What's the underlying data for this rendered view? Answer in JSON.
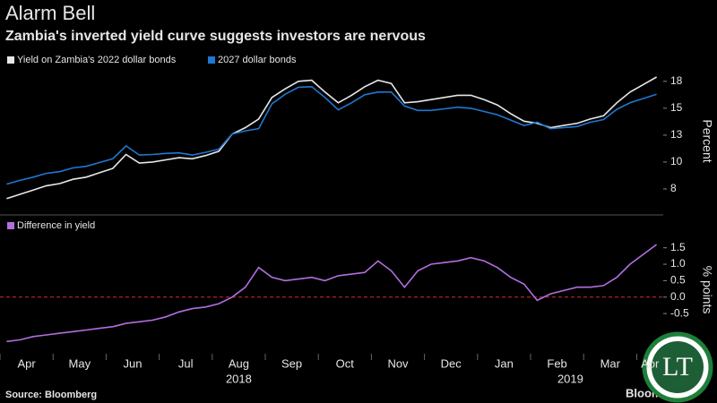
{
  "title": "Alarm Bell",
  "subtitle": "Zambia's inverted yield curve suggests investors are nervous",
  "source": "Source: Bloomberg",
  "brand": "Bloomberg",
  "watermark": "LT",
  "chart_data": [
    {
      "type": "line",
      "ylabel": "Percent",
      "x": [
        "2018-04",
        "2018-04",
        "2018-04",
        "2018-04",
        "2018-05",
        "2018-05",
        "2018-05",
        "2018-05",
        "2018-06",
        "2018-06",
        "2018-06",
        "2018-06",
        "2018-07",
        "2018-07",
        "2018-07",
        "2018-07",
        "2018-08",
        "2018-08",
        "2018-08",
        "2018-08",
        "2018-09",
        "2018-09",
        "2018-09",
        "2018-09",
        "2018-10",
        "2018-10",
        "2018-10",
        "2018-10",
        "2018-11",
        "2018-11",
        "2018-11",
        "2018-11",
        "2018-12",
        "2018-12",
        "2018-12",
        "2018-12",
        "2019-01",
        "2019-01",
        "2019-01",
        "2019-01",
        "2019-02",
        "2019-02",
        "2019-02",
        "2019-02",
        "2019-03",
        "2019-03",
        "2019-03",
        "2019-03",
        "2019-04",
        "2019-04"
      ],
      "series": [
        {
          "name": "Yield on Zambia's 2022 dollar bonds",
          "color": "#e8e8e8",
          "values": [
            6.6,
            7.0,
            7.4,
            7.8,
            8.0,
            8.4,
            8.6,
            9.0,
            9.4,
            10.7,
            9.9,
            10.0,
            10.2,
            10.4,
            10.3,
            10.6,
            11.0,
            12.6,
            13.2,
            14.0,
            16.0,
            16.8,
            17.5,
            17.6,
            16.5,
            15.5,
            16.2,
            17.0,
            17.6,
            17.3,
            15.5,
            15.6,
            15.8,
            16.0,
            16.2,
            16.2,
            15.8,
            15.3,
            14.5,
            13.8,
            13.6,
            13.2,
            13.4,
            13.6,
            14.0,
            14.3,
            15.5,
            16.5,
            17.2,
            17.9
          ]
        },
        {
          "name": "2027 dollar bonds",
          "color": "#1f78d1",
          "values": [
            7.95,
            8.3,
            8.6,
            8.95,
            9.1,
            9.45,
            9.6,
            9.95,
            10.3,
            11.5,
            10.65,
            10.7,
            10.8,
            10.85,
            10.65,
            10.9,
            11.2,
            12.6,
            12.9,
            13.1,
            15.4,
            16.3,
            16.95,
            17.0,
            16.0,
            14.85,
            15.5,
            16.25,
            16.5,
            16.5,
            15.2,
            14.8,
            14.8,
            14.95,
            15.1,
            15.0,
            14.7,
            14.4,
            13.9,
            13.4,
            13.7,
            13.1,
            13.2,
            13.3,
            13.7,
            13.95,
            14.9,
            15.5,
            15.9,
            16.3
          ]
        }
      ],
      "ylim": [
        5.5,
        18.4
      ],
      "yticks": [
        {
          "value": 7.5,
          "label": "8"
        },
        10,
        {
          "value": 12.5,
          "label": "13"
        },
        15,
        {
          "value": 17.5,
          "label": "18"
        }
      ]
    },
    {
      "type": "line",
      "ylabel": "% points",
      "x": [
        "2018-04",
        "2018-04",
        "2018-04",
        "2018-04",
        "2018-05",
        "2018-05",
        "2018-05",
        "2018-05",
        "2018-06",
        "2018-06",
        "2018-06",
        "2018-06",
        "2018-07",
        "2018-07",
        "2018-07",
        "2018-07",
        "2018-08",
        "2018-08",
        "2018-08",
        "2018-08",
        "2018-09",
        "2018-09",
        "2018-09",
        "2018-09",
        "2018-10",
        "2018-10",
        "2018-10",
        "2018-10",
        "2018-11",
        "2018-11",
        "2018-11",
        "2018-11",
        "2018-12",
        "2018-12",
        "2018-12",
        "2018-12",
        "2019-01",
        "2019-01",
        "2019-01",
        "2019-01",
        "2019-02",
        "2019-02",
        "2019-02",
        "2019-02",
        "2019-03",
        "2019-03",
        "2019-03",
        "2019-03",
        "2019-04",
        "2019-04"
      ],
      "series": [
        {
          "name": "Difference in yield",
          "color": "#b36ee0",
          "values": [
            -1.35,
            -1.3,
            -1.2,
            -1.15,
            -1.1,
            -1.05,
            -1.0,
            -0.95,
            -0.9,
            -0.8,
            -0.75,
            -0.7,
            -0.6,
            -0.45,
            -0.35,
            -0.3,
            -0.2,
            0.0,
            0.3,
            0.9,
            0.6,
            0.5,
            0.55,
            0.6,
            0.5,
            0.65,
            0.7,
            0.75,
            1.1,
            0.8,
            0.3,
            0.8,
            1.0,
            1.05,
            1.1,
            1.2,
            1.1,
            0.9,
            0.6,
            0.4,
            -0.1,
            0.1,
            0.2,
            0.3,
            0.3,
            0.35,
            0.6,
            1.0,
            1.3,
            1.6
          ]
        }
      ],
      "ylim": [
        -1.45,
        1.9
      ],
      "yticks": [
        {
          "value": -0.5,
          "label": "-0.5"
        },
        {
          "value": 0,
          "label": "0.0"
        },
        0.5,
        {
          "value": 1,
          "label": "1.0"
        },
        1.5
      ],
      "reference_line": {
        "value": 0,
        "color": "#d0312d"
      },
      "xticks": [
        {
          "value": "2018-04",
          "label": "Apr"
        },
        {
          "value": "2018-05",
          "label": "May"
        },
        {
          "value": "2018-06",
          "label": "Jun"
        },
        {
          "value": "2018-07",
          "label": "Jul"
        },
        {
          "value": "2018-08",
          "label": "Aug"
        },
        {
          "value": "2018-09",
          "label": "Sep"
        },
        {
          "value": "2018-10",
          "label": "Oct"
        },
        {
          "value": "2018-11",
          "label": "Nov"
        },
        {
          "value": "2018-12",
          "label": "Dec"
        },
        {
          "value": "2019-01",
          "label": "Jan"
        },
        {
          "value": "2019-02",
          "label": "Feb"
        },
        {
          "value": "2019-03",
          "label": "Mar"
        },
        {
          "value": "2019-04",
          "label": "Apr"
        }
      ],
      "years": [
        "2018",
        "2019"
      ]
    }
  ]
}
